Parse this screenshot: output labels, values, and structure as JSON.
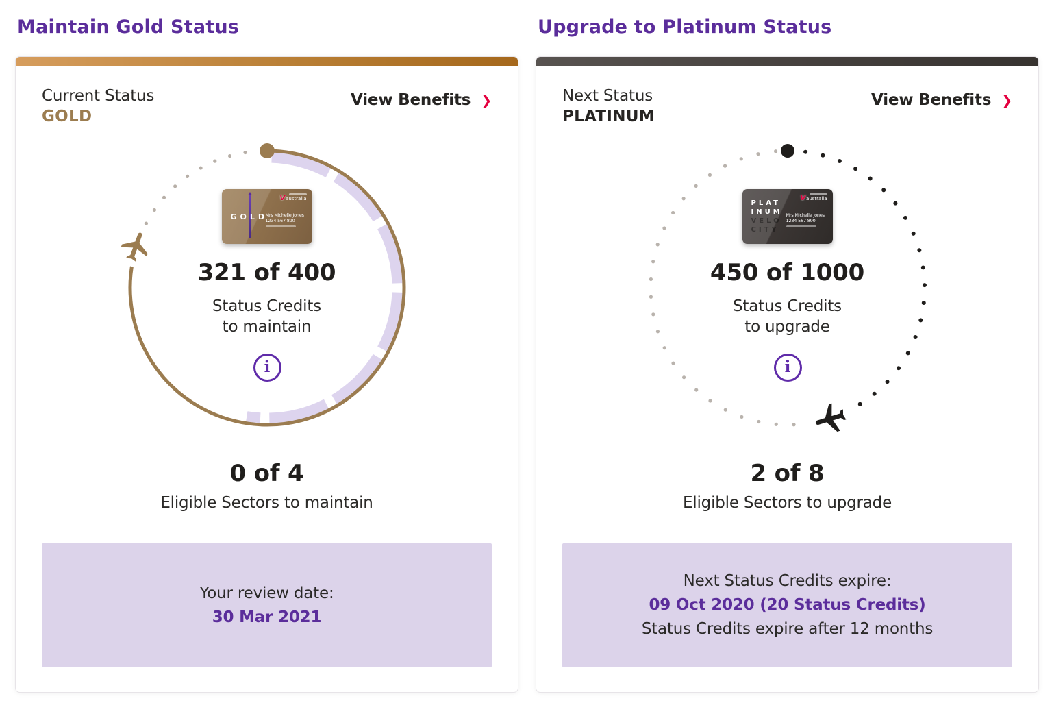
{
  "colors": {
    "heading_purple": "#5b2d9b",
    "accent_purple": "#5f2ba9",
    "gold": "#9b7c50",
    "platinum_dark": "#1f1d1b",
    "lavender": "#dcd3ea",
    "virgin_red": "#e4003f",
    "text_dark": "#2b2a28"
  },
  "cards": [
    {
      "tier": "gold",
      "heading": "Maintain Gold Status",
      "header": {
        "status_label": "Current Status",
        "status_value": "GOLD",
        "link_label": "View Benefits",
        "link_chevron": "❯"
      },
      "membership_card": {
        "tier_line": "GOLD",
        "logo_word": "australia",
        "logo_v": "V",
        "holder_name": "Mrs Michelle Jones",
        "holder_number": "1234 567 890"
      },
      "credits_value": "321 of 400",
      "credits_caption_line1": "Status Credits",
      "credits_caption_line2": "to maintain",
      "info_glyph": "i",
      "sectors_value": "0 of 4",
      "sectors_caption": "Eligible Sectors to maintain",
      "footer": {
        "line1": "Your review date:",
        "line2": "30 Mar 2021"
      },
      "ring": {
        "marker": {
          "deg": 0,
          "r": 11,
          "color": "#9b7c50"
        },
        "solid_arc": {
          "from": 0,
          "to": 282,
          "color": "#9b7c50",
          "width": 5,
          "radius": 200
        },
        "segments": {
          "color": "#ddd4ee",
          "width": 15,
          "radius": 190,
          "spans": [
            [
              2,
              28
            ],
            [
              32,
              58
            ],
            [
              62,
              88
            ],
            [
              92,
              118
            ],
            [
              122,
              149
            ],
            [
              153,
              179
            ],
            [
              183,
              189
            ]
          ]
        },
        "dot_runs": [
          {
            "from": 298,
            "to": 357,
            "step": 6.6,
            "r": 2.6,
            "color": "#b7afa7"
          }
        ],
        "plane": {
          "deg": 287.5,
          "rotate": 20,
          "scale": 2.1,
          "color": "#9b7c50"
        }
      }
    },
    {
      "tier": "platinum",
      "heading": "Upgrade to Platinum Status",
      "header": {
        "status_label": "Next Status",
        "status_value": "PLATINUM",
        "link_label": "View Benefits",
        "link_chevron": "❯"
      },
      "membership_card": {
        "tier_rows": [
          "PLAT",
          "INUM",
          "VELO",
          "CITY"
        ],
        "logo_word": "australia",
        "logo_v": "V",
        "holder_name": "Mrs Michelle Jones",
        "holder_number": "1234 567 890"
      },
      "credits_value": "450 of 1000",
      "credits_caption_line1": "Status Credits",
      "credits_caption_line2": "to upgrade",
      "info_glyph": "i",
      "sectors_value": "2 of 8",
      "sectors_caption": "Eligible Sectors to upgrade",
      "footer": {
        "line1": "Next Status Credits expire:",
        "line2": "09 Oct 2020 (20 Status Credits)",
        "line3": "Status Credits expire after 12 months"
      },
      "ring": {
        "marker": {
          "deg": 0,
          "r": 10,
          "color": "#1f1d1b"
        },
        "dot_runs": [
          {
            "from": 7.5,
            "to": 150,
            "step": 7.4,
            "r": 3.0,
            "color": "#1f1d1b"
          },
          {
            "from": 170,
            "to": 355,
            "step": 7.4,
            "r": 2.6,
            "color": "#b9b3ad"
          }
        ],
        "plane": {
          "deg": 162,
          "rotate": -107,
          "scale": 2.2,
          "color": "#1f1d1b"
        }
      }
    }
  ]
}
